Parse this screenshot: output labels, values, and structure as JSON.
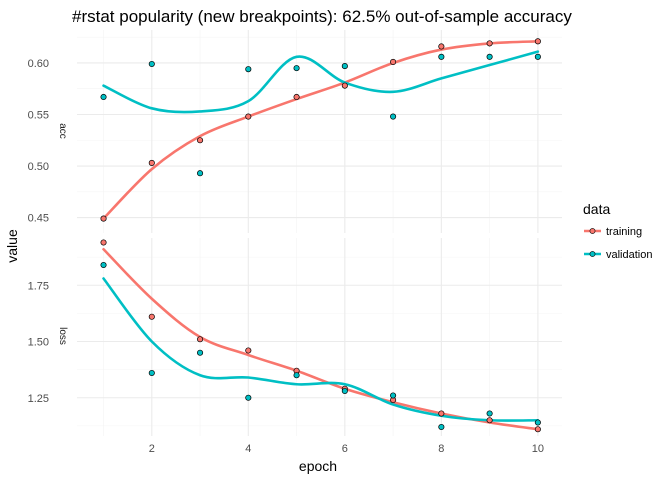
{
  "chart_data": {
    "type": "line",
    "title": "#rstat popularity (new breakpoints): 62.5% out-of-sample accuracy",
    "xlabel": "epoch",
    "ylabel": "value",
    "x": [
      1,
      2,
      3,
      4,
      5,
      6,
      7,
      8,
      9,
      10
    ],
    "x_ticks": [
      "2",
      "4",
      "6",
      "8",
      "10"
    ],
    "xlim": [
      0.45,
      10.5
    ],
    "legend": {
      "title": "data",
      "entries": [
        "training",
        "validation"
      ],
      "position": "right"
    },
    "colors": {
      "training": "#F8766D",
      "validation": "#00BFC4"
    },
    "grid": true,
    "facets": [
      {
        "label": "acc",
        "ylim": [
          0.435,
          0.632
        ],
        "y_ticks": [
          "0.45",
          "0.50",
          "0.55",
          "0.60"
        ],
        "series": [
          {
            "name": "training",
            "points": [
              0.449,
              0.503,
              0.525,
              0.548,
              0.567,
              0.578,
              0.601,
              0.616,
              0.619,
              0.621
            ],
            "smooth": [
              0.449,
              0.497,
              0.529,
              0.548,
              0.565,
              0.581,
              0.6,
              0.613,
              0.619,
              0.621
            ]
          },
          {
            "name": "validation",
            "points": [
              0.567,
              0.599,
              0.493,
              0.594,
              0.595,
              0.597,
              0.548,
              0.606,
              0.606,
              0.606
            ],
            "smooth": [
              0.578,
              0.556,
              0.553,
              0.563,
              0.606,
              0.581,
              0.572,
              0.585,
              0.598,
              0.611
            ]
          }
        ]
      },
      {
        "label": "loss",
        "ylim": [
          1.08,
          1.96
        ],
        "y_ticks": [
          "1.25",
          "1.50",
          "1.75"
        ],
        "series": [
          {
            "name": "training",
            "points": [
              1.94,
              1.61,
              1.51,
              1.46,
              1.37,
              1.29,
              1.24,
              1.18,
              1.15,
              1.11
            ],
            "smooth": [
              1.91,
              1.69,
              1.52,
              1.44,
              1.37,
              1.29,
              1.23,
              1.18,
              1.14,
              1.11
            ]
          },
          {
            "name": "validation",
            "points": [
              1.84,
              1.36,
              1.45,
              1.25,
              1.35,
              1.28,
              1.26,
              1.12,
              1.18,
              1.14
            ],
            "smooth": [
              1.78,
              1.5,
              1.35,
              1.34,
              1.31,
              1.31,
              1.22,
              1.17,
              1.15,
              1.15
            ]
          }
        ]
      }
    ]
  }
}
